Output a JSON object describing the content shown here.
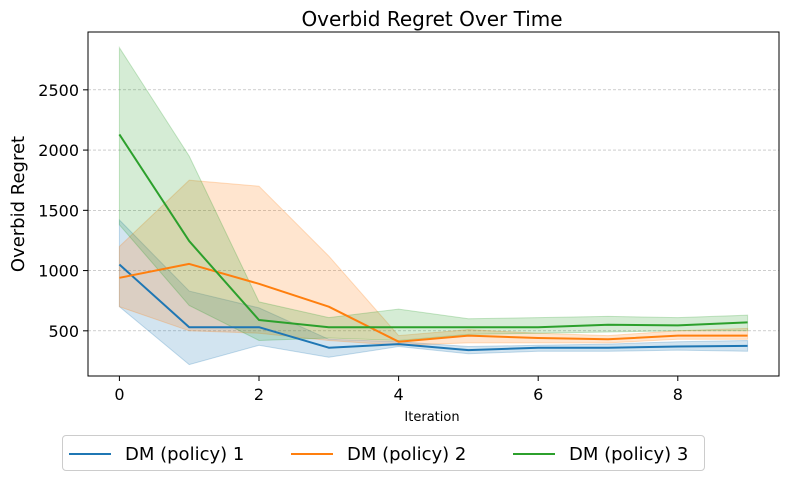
{
  "chart_data": {
    "type": "line",
    "title": "Overbid Regret Over Time",
    "xlabel": "Iteration",
    "ylabel": "Overbid Regret",
    "xlim": [
      -0.45,
      9.45
    ],
    "ylim": [
      125,
      2980
    ],
    "xticks": [
      0,
      2,
      4,
      6,
      8
    ],
    "yticks": [
      500,
      1000,
      1500,
      2000,
      2500
    ],
    "grid": "horizontal dashed",
    "legend_position": "bottom-center",
    "x": [
      0,
      1,
      2,
      3,
      4,
      5,
      6,
      7,
      8,
      9
    ],
    "series": [
      {
        "name": "DM (policy) 1",
        "color": "#1f77b4",
        "values": [
          1050,
          530,
          530,
          360,
          390,
          340,
          360,
          360,
          370,
          375
        ],
        "lower": [
          700,
          220,
          380,
          280,
          370,
          310,
          330,
          330,
          340,
          330
        ],
        "upper": [
          1420,
          830,
          690,
          430,
          410,
          370,
          380,
          390,
          410,
          420
        ]
      },
      {
        "name": "DM (policy) 2",
        "color": "#ff7f0e",
        "values": [
          940,
          1055,
          890,
          700,
          410,
          460,
          440,
          430,
          460,
          460
        ],
        "lower": [
          700,
          500,
          480,
          420,
          380,
          400,
          400,
          400,
          430,
          430
        ],
        "upper": [
          1200,
          1750,
          1700,
          1120,
          460,
          510,
          480,
          460,
          500,
          520
        ]
      },
      {
        "name": "DM (policy) 3",
        "color": "#2ca02c",
        "values": [
          2130,
          1245,
          590,
          530,
          530,
          530,
          530,
          550,
          545,
          570
        ],
        "lower": [
          1380,
          710,
          420,
          440,
          420,
          470,
          480,
          490,
          500,
          500
        ],
        "upper": [
          2850,
          1950,
          740,
          610,
          680,
          600,
          610,
          620,
          610,
          630
        ]
      }
    ]
  }
}
